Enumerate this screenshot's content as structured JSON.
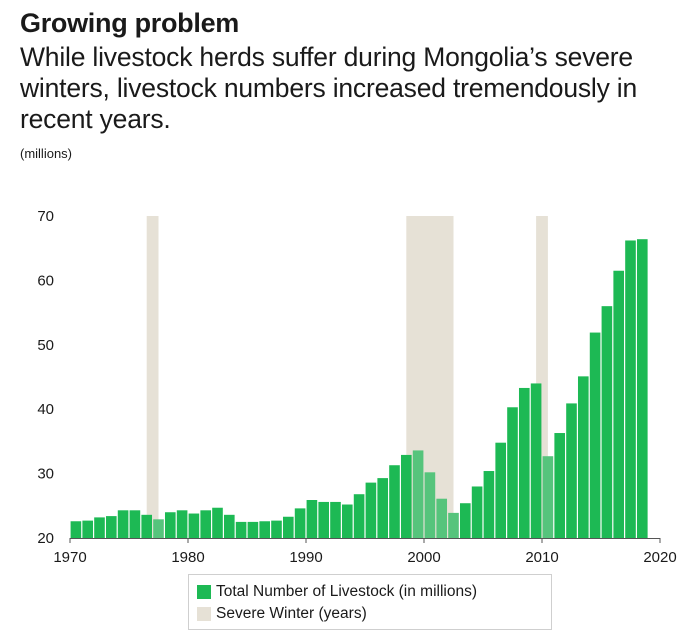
{
  "header": {
    "title": "Growing problem",
    "subtitle": "While livestock herds suffer during Mongolia’s severe winters, livestock numbers increased tremendously in recent years.",
    "unit": "(millions)"
  },
  "legend": {
    "livestock_label": "Total Number of Livestock (in millions)",
    "winter_label": "Severe Winter (years)"
  },
  "colors": {
    "bar": "#1db954",
    "bar_dark": "#119a45",
    "bar_winter": "#56c47c",
    "winter_band": "#e6e1d6",
    "axis": "#555555"
  },
  "chart_data": {
    "type": "bar",
    "title": "Growing problem",
    "ylabel": "(millions)",
    "xlabel": "",
    "ylim": [
      20,
      70
    ],
    "yticks": [
      20,
      30,
      40,
      50,
      60,
      70
    ],
    "xlim": [
      1970,
      2020
    ],
    "xticks": [
      1970,
      1980,
      1990,
      2000,
      2010,
      2020
    ],
    "series": [
      {
        "name": "Total Number of Livestock (in millions)",
        "x": [
          1970,
          1971,
          1972,
          1973,
          1974,
          1975,
          1976,
          1977,
          1978,
          1979,
          1980,
          1981,
          1982,
          1983,
          1984,
          1985,
          1986,
          1987,
          1988,
          1989,
          1990,
          1991,
          1992,
          1993,
          1994,
          1995,
          1996,
          1997,
          1998,
          1999,
          2000,
          2001,
          2002,
          2003,
          2004,
          2005,
          2006,
          2007,
          2008,
          2009,
          2010,
          2011,
          2012,
          2013,
          2014,
          2015,
          2016,
          2017,
          2018
        ],
        "values": [
          22.6,
          22.7,
          23.2,
          23.4,
          24.3,
          24.3,
          23.6,
          22.9,
          24.0,
          24.3,
          23.8,
          24.3,
          24.7,
          23.6,
          22.5,
          22.5,
          22.6,
          22.7,
          23.3,
          24.6,
          25.9,
          25.6,
          25.6,
          25.2,
          26.8,
          28.6,
          29.3,
          31.3,
          32.9,
          33.6,
          30.2,
          26.1,
          23.9,
          25.4,
          28.0,
          30.4,
          34.8,
          40.3,
          43.3,
          44.0,
          32.7,
          36.3,
          40.9,
          45.1,
          51.9,
          56.0,
          61.5,
          66.2,
          66.4
        ]
      }
    ],
    "severe_winters": [
      {
        "start": 1976.5,
        "end": 1977.5
      },
      {
        "start": 1998.5,
        "end": 2002.5
      },
      {
        "start": 2009.5,
        "end": 2010.5
      }
    ]
  }
}
